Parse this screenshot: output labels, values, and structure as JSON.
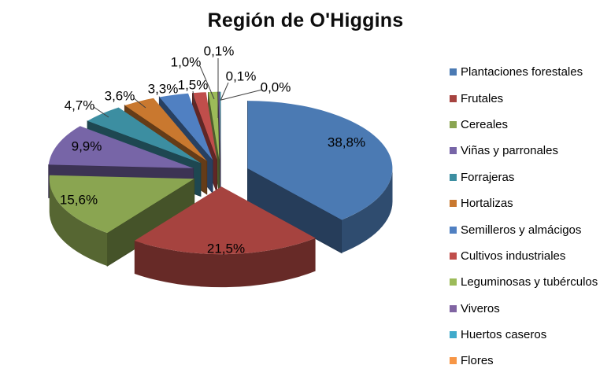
{
  "chart_data": {
    "type": "pie",
    "style": "3d-exploded",
    "title": "Región de O'Higgins",
    "legend_position": "right",
    "grid": false,
    "categories": [
      "Plantaciones forestales",
      "Frutales",
      "Cereales",
      "Viñas y parronales",
      "Forrajeras",
      "Hortalizas",
      "Semilleros y almácigos",
      "Cultivos industriales",
      "Leguminosas y tubérculos",
      "Viveros",
      "Huertos caseros",
      "Flores"
    ],
    "values": [
      38.8,
      21.5,
      15.6,
      9.9,
      4.7,
      3.6,
      3.3,
      1.5,
      1.0,
      0.1,
      0.1,
      0.0
    ],
    "labels": [
      "38,8%",
      "21,5%",
      "15,6%",
      "9,9%",
      "4,7%",
      "3,6%",
      "3,3%",
      "1,5%",
      "1,0%",
      "0,1%",
      "0,1%",
      "0,0%"
    ],
    "colors": [
      "#4B7AB3",
      "#A6433F",
      "#8AA551",
      "#7765A7",
      "#3C8EA1",
      "#C9782F",
      "#5080C2",
      "#C04E4B",
      "#9CBB59",
      "#8064A2",
      "#40AACB",
      "#F79646"
    ],
    "label_text_color": "#000000",
    "leader_line_color": "#404040"
  }
}
